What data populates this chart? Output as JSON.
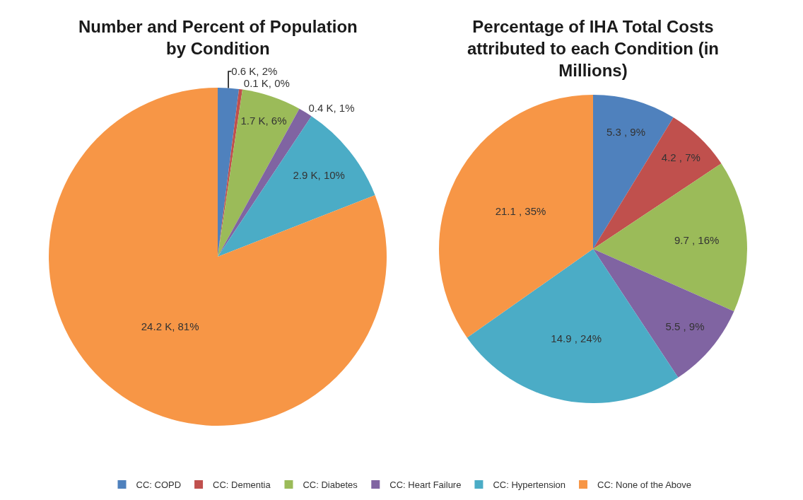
{
  "chart_data": {
    "type": "pie",
    "categories": [
      "CC: COPD",
      "CC: Dementia",
      "CC: Diabetes",
      "CC: Heart Failure",
      "CC: Hypertension",
      "CC: None of the Above"
    ],
    "colors": [
      "#4f81bd",
      "#c0504d",
      "#9bbb59",
      "#8064a2",
      "#4bacc6",
      "#f79646"
    ],
    "legend": "bottom",
    "series": [
      {
        "name": "Number and Percent of Population by Condition",
        "values": [
          0.6,
          0.1,
          1.7,
          0.4,
          2.9,
          24.2
        ],
        "value_labels": [
          "0.6 K, 2%",
          "0.1 K, 0%",
          "1.7 K, 6%",
          "0.4 K, 1%",
          "2.9 K, 10%",
          "24.2 K, 81%"
        ]
      },
      {
        "name": "Percentage of IHA Total Costs attributed to each Condition (in Millions)",
        "values": [
          5.3,
          4.2,
          9.7,
          5.5,
          14.9,
          21.1
        ],
        "value_labels": [
          "5.3 , 9%",
          "4.2 , 7%",
          "9.7 , 16%",
          "5.5 , 9%",
          "14.9 , 24%",
          "21.1 , 35%"
        ]
      }
    ]
  }
}
